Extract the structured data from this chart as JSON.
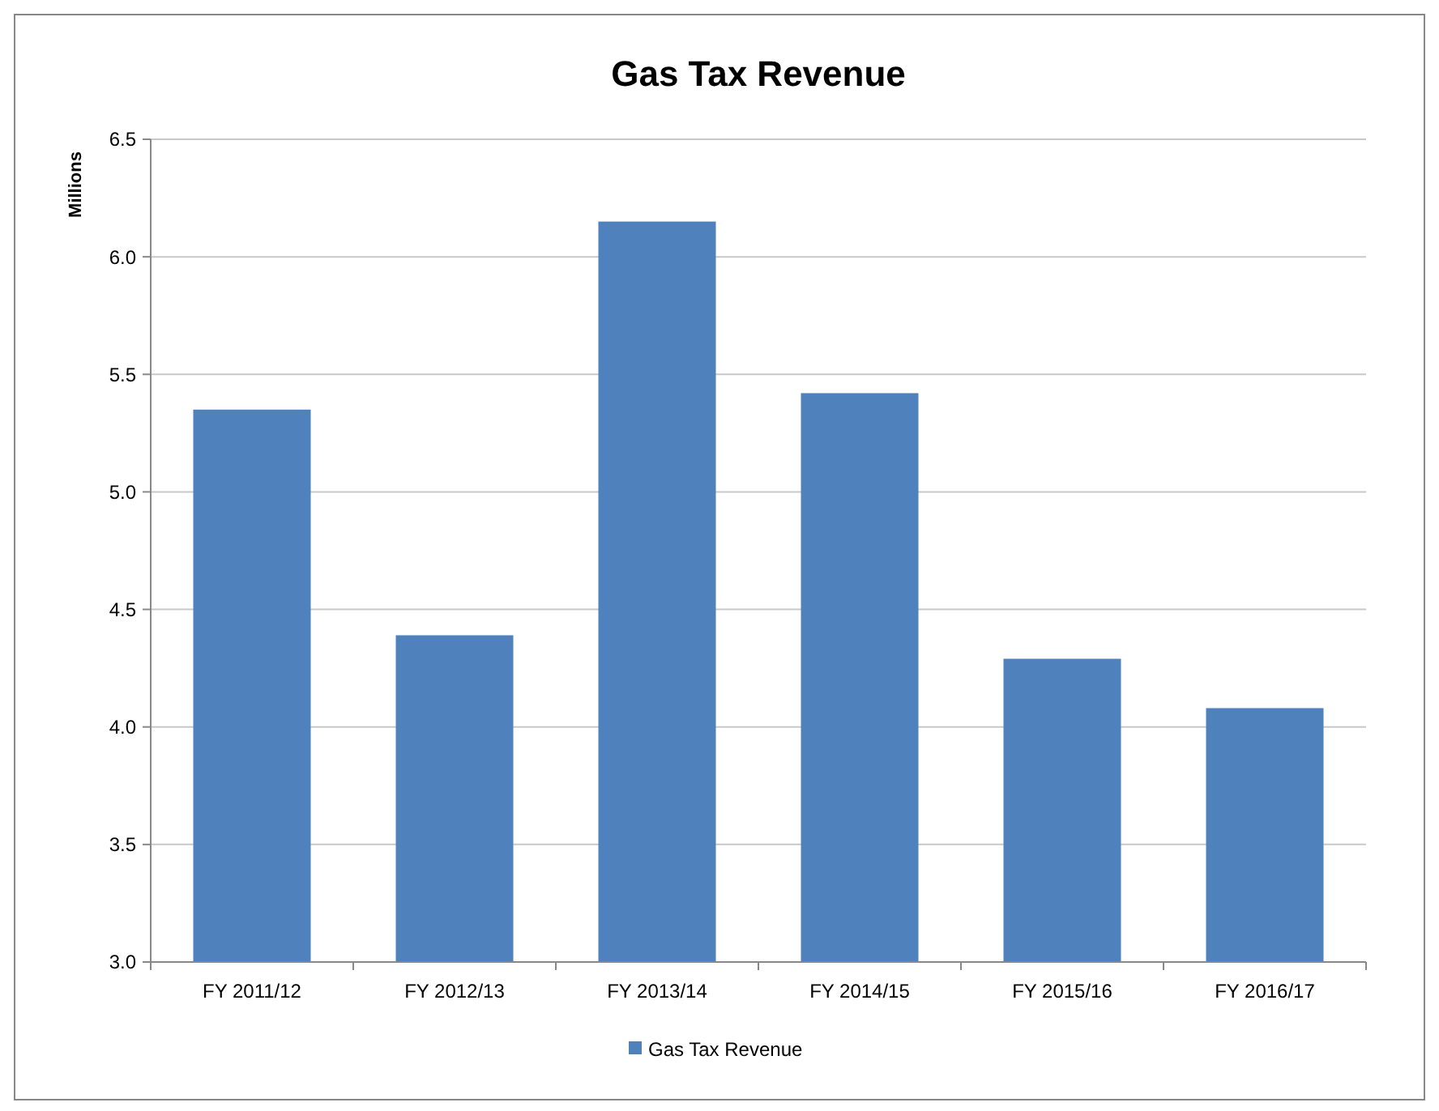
{
  "chart_data": {
    "type": "bar",
    "title": "Gas Tax Revenue",
    "ylabel": "Millions",
    "categories": [
      "FY 2011/12",
      "FY 2012/13",
      "FY 2013/14",
      "FY 2014/15",
      "FY 2015/16",
      "FY 2016/17"
    ],
    "series": [
      {
        "name": "Gas Tax Revenue",
        "color": "#4f81bd",
        "values": [
          5.35,
          4.39,
          6.15,
          5.42,
          4.29,
          4.08
        ]
      }
    ],
    "ylim": [
      3.0,
      6.5
    ],
    "yticks": [
      {
        "value": 3,
        "label": "3.0"
      },
      {
        "value": 3.5,
        "label": "3.5"
      },
      {
        "value": 4,
        "label": "4.0"
      },
      {
        "value": 4.5,
        "label": "4.5"
      },
      {
        "value": 5,
        "label": "5.0"
      },
      {
        "value": 5.5,
        "label": "5.5"
      },
      {
        "value": 6,
        "label": "6.0"
      },
      {
        "value": 6.5,
        "label": "6.5"
      }
    ],
    "grid": "y",
    "legend": "bottom"
  }
}
